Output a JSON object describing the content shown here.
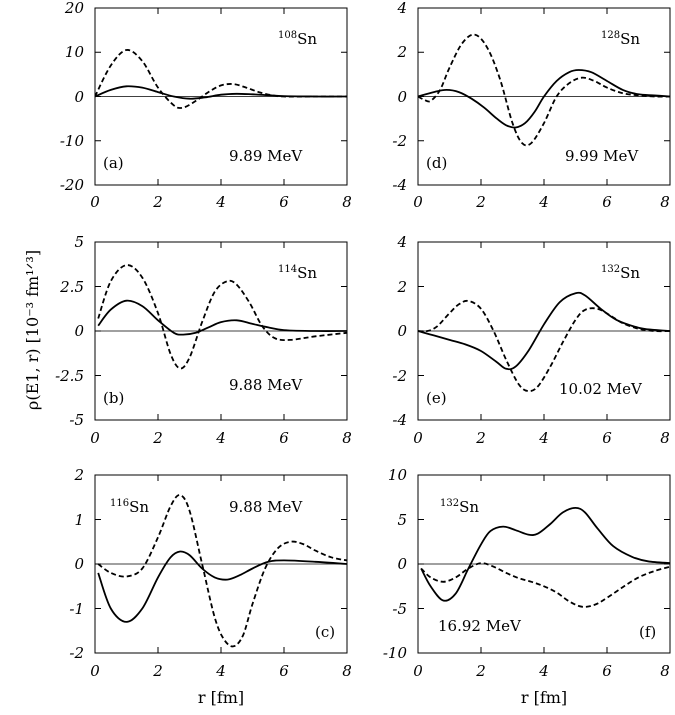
{
  "figure": {
    "ylabel": "ρ(E1, r) [10⁻³ fm¹ᐟ³]",
    "xlabel_left": "r [fm]",
    "xlabel_right": "r [fm]"
  },
  "chart_data": [
    {
      "type": "line",
      "panel": "(a)",
      "isotope_mass": "108",
      "isotope_symbol": "Sn",
      "energy": "9.89 MeV",
      "xlim": [
        0,
        8
      ],
      "ylim": [
        -20,
        20
      ],
      "x_ticks": [
        0,
        2,
        4,
        6,
        8
      ],
      "y_ticks": [
        -20,
        -10,
        0,
        10,
        20
      ],
      "x_tick_labels": [
        "0",
        "2",
        "4",
        "6",
        "8"
      ],
      "y_tick_labels": [
        "-20",
        "-10",
        "0",
        "10",
        "20"
      ],
      "series": [
        {
          "style": "solid",
          "x": [
            0,
            0.5,
            1,
            1.5,
            2,
            2.5,
            3,
            3.5,
            4,
            4.5,
            5,
            5.5,
            6,
            7,
            8
          ],
          "y": [
            0,
            1.5,
            2.3,
            2,
            1,
            0,
            -0.5,
            -0.2,
            0.4,
            0.6,
            0.5,
            0.3,
            0.1,
            0,
            0
          ]
        },
        {
          "style": "dashed",
          "x": [
            0,
            0.5,
            1,
            1.5,
            2,
            2.5,
            2.8,
            3.2,
            3.6,
            4,
            4.4,
            4.8,
            5.2,
            5.6,
            6,
            7,
            8
          ],
          "y": [
            0,
            7,
            10.5,
            8,
            2,
            -2,
            -2.5,
            -1,
            1,
            2.5,
            2.8,
            2,
            1,
            0.3,
            0,
            0,
            0
          ]
        }
      ]
    },
    {
      "type": "line",
      "panel": "(b)",
      "isotope_mass": "114",
      "isotope_symbol": "Sn",
      "energy": "9.88 MeV",
      "xlim": [
        0,
        8
      ],
      "ylim": [
        -5,
        5
      ],
      "x_ticks": [
        0,
        2,
        4,
        6,
        8
      ],
      "y_ticks": [
        -5,
        -2.5,
        0,
        2.5,
        5
      ],
      "x_tick_labels": [
        "0",
        "2",
        "4",
        "6",
        "8"
      ],
      "y_tick_labels": [
        "-5",
        "-2.5",
        "0",
        "2.5",
        "5"
      ],
      "series": [
        {
          "style": "solid",
          "x": [
            0.1,
            0.5,
            1,
            1.5,
            2,
            2.5,
            2.8,
            3.2,
            3.6,
            4,
            4.5,
            5,
            5.5,
            6,
            7,
            8
          ],
          "y": [
            0.3,
            1.2,
            1.7,
            1.4,
            0.6,
            -0.1,
            -0.2,
            -0.1,
            0.2,
            0.5,
            0.6,
            0.4,
            0.2,
            0.05,
            0,
            0
          ]
        },
        {
          "style": "dashed",
          "x": [
            0.1,
            0.5,
            1,
            1.5,
            2,
            2.4,
            2.7,
            3,
            3.4,
            3.8,
            4.2,
            4.5,
            4.9,
            5.3,
            5.7,
            6.2,
            7,
            8
          ],
          "y": [
            0.7,
            2.8,
            3.7,
            3,
            1,
            -1.3,
            -2.1,
            -1.5,
            0.5,
            2.2,
            2.8,
            2.6,
            1.6,
            0.3,
            -0.4,
            -0.5,
            -0.3,
            -0.1
          ]
        }
      ]
    },
    {
      "type": "line",
      "panel": "(c)",
      "isotope_mass": "116",
      "isotope_symbol": "Sn",
      "energy": "9.88 MeV",
      "xlim": [
        0,
        8
      ],
      "ylim": [
        -2,
        2
      ],
      "x_ticks": [
        0,
        2,
        4,
        6,
        8
      ],
      "y_ticks": [
        -2,
        -1,
        0,
        1,
        2
      ],
      "x_tick_labels": [
        "0",
        "2",
        "4",
        "6",
        "8"
      ],
      "y_tick_labels": [
        "-2",
        "-1",
        "0",
        "1",
        "2"
      ],
      "series": [
        {
          "style": "solid",
          "x": [
            0.1,
            0.5,
            1,
            1.5,
            2,
            2.4,
            2.7,
            3,
            3.4,
            3.8,
            4.2,
            4.6,
            5,
            5.5,
            6,
            7,
            8
          ],
          "y": [
            -0.2,
            -1.0,
            -1.3,
            -1.0,
            -0.3,
            0.15,
            0.28,
            0.2,
            -0.1,
            -0.3,
            -0.35,
            -0.25,
            -0.1,
            0.05,
            0.08,
            0.05,
            0
          ]
        },
        {
          "style": "dashed",
          "x": [
            0.1,
            0.5,
            1,
            1.5,
            2,
            2.4,
            2.7,
            3,
            3.4,
            3.8,
            4.1,
            4.4,
            4.7,
            5,
            5.4,
            5.8,
            6.2,
            6.6,
            7,
            7.5,
            8
          ],
          "y": [
            0,
            -0.2,
            -0.28,
            -0.1,
            0.6,
            1.3,
            1.55,
            1.2,
            0,
            -1.2,
            -1.7,
            -1.85,
            -1.6,
            -0.9,
            -0.1,
            0.35,
            0.5,
            0.45,
            0.3,
            0.15,
            0.08
          ]
        }
      ]
    },
    {
      "type": "line",
      "panel": "(d)",
      "isotope_mass": "128",
      "isotope_symbol": "Sn",
      "energy": "9.99 MeV",
      "xlim": [
        0,
        8
      ],
      "ylim": [
        -4,
        4
      ],
      "x_ticks": [
        0,
        2,
        4,
        6,
        8
      ],
      "y_ticks": [
        -4,
        -2,
        0,
        2,
        4
      ],
      "x_tick_labels": [
        "0",
        "2",
        "4",
        "6",
        "8"
      ],
      "y_tick_labels": [
        "-4",
        "-2",
        "0",
        "2",
        "4"
      ],
      "series": [
        {
          "style": "solid",
          "x": [
            0,
            0.5,
            0.9,
            1.3,
            1.7,
            2.1,
            2.5,
            2.8,
            3.1,
            3.4,
            3.7,
            4,
            4.4,
            4.8,
            5.1,
            5.5,
            6,
            6.5,
            7,
            7.5,
            8
          ],
          "y": [
            0,
            0.2,
            0.3,
            0.2,
            -0.1,
            -0.5,
            -1.0,
            -1.3,
            -1.4,
            -1.2,
            -0.7,
            0,
            0.7,
            1.1,
            1.2,
            1.1,
            0.7,
            0.3,
            0.1,
            0.05,
            0
          ]
        },
        {
          "style": "dashed",
          "x": [
            0,
            0.2,
            0.4,
            0.7,
            1,
            1.4,
            1.8,
            2.2,
            2.6,
            3,
            3.3,
            3.6,
            4,
            4.4,
            4.8,
            5.2,
            5.6,
            6,
            6.5,
            7,
            7.5,
            8
          ],
          "y": [
            0,
            -0.15,
            -0.2,
            0.3,
            1.3,
            2.4,
            2.8,
            2.2,
            0.8,
            -1.2,
            -2.1,
            -2.1,
            -1.2,
            0,
            0.6,
            0.85,
            0.7,
            0.4,
            0.15,
            0.05,
            0,
            0
          ]
        }
      ]
    },
    {
      "type": "line",
      "panel": "(e)",
      "isotope_mass": "132",
      "isotope_symbol": "Sn",
      "energy": "10.02 MeV",
      "xlim": [
        0,
        8
      ],
      "ylim": [
        -4,
        4
      ],
      "x_ticks": [
        0,
        2,
        4,
        6,
        8
      ],
      "y_ticks": [
        -4,
        -2,
        0,
        2,
        4
      ],
      "x_tick_labels": [
        "0",
        "2",
        "4",
        "6",
        "8"
      ],
      "y_tick_labels": [
        "-4",
        "-2",
        "0",
        "2",
        "4"
      ],
      "series": [
        {
          "style": "solid",
          "x": [
            0,
            0.5,
            1,
            1.5,
            2,
            2.5,
            2.8,
            3.1,
            3.5,
            4,
            4.5,
            5,
            5.3,
            5.8,
            6.3,
            7,
            7.5,
            8
          ],
          "y": [
            0,
            -0.2,
            -0.4,
            -0.6,
            -0.9,
            -1.4,
            -1.7,
            -1.6,
            -0.9,
            0.3,
            1.3,
            1.7,
            1.6,
            1.0,
            0.5,
            0.15,
            0.05,
            0
          ]
        },
        {
          "style": "dashed",
          "x": [
            0,
            0.3,
            0.6,
            1,
            1.3,
            1.6,
            2,
            2.4,
            2.8,
            3.2,
            3.5,
            3.8,
            4.2,
            4.6,
            5,
            5.3,
            5.7,
            6.1,
            6.5,
            7,
            7.5,
            8
          ],
          "y": [
            0,
            0,
            0.2,
            0.8,
            1.2,
            1.35,
            1.0,
            0,
            -1.3,
            -2.4,
            -2.7,
            -2.5,
            -1.6,
            -0.5,
            0.5,
            0.95,
            1.0,
            0.7,
            0.35,
            0.1,
            0,
            0
          ]
        }
      ]
    },
    {
      "type": "line",
      "panel": "(f)",
      "isotope_mass": "132",
      "isotope_symbol": "Sn",
      "energy": "16.92 MeV",
      "xlim": [
        0,
        8
      ],
      "ylim": [
        -10,
        10
      ],
      "x_ticks": [
        0,
        2,
        4,
        6,
        8
      ],
      "y_ticks": [
        -10,
        -5,
        0,
        5,
        10
      ],
      "x_tick_labels": [
        "0",
        "2",
        "4",
        "6",
        "8"
      ],
      "y_tick_labels": [
        "-10",
        "-5",
        "0",
        "5",
        "10"
      ],
      "series": [
        {
          "style": "solid",
          "x": [
            0.1,
            0.4,
            0.8,
            1.2,
            1.6,
            2,
            2.3,
            2.7,
            3.1,
            3.5,
            3.8,
            4.2,
            4.6,
            5,
            5.3,
            5.7,
            6.2,
            6.8,
            7.3,
            8
          ],
          "y": [
            -0.5,
            -2.5,
            -4.1,
            -3.3,
            -0.5,
            2.2,
            3.7,
            4.2,
            3.8,
            3.3,
            3.4,
            4.5,
            5.8,
            6.3,
            5.8,
            4.0,
            2.0,
            0.8,
            0.3,
            0.1
          ]
        },
        {
          "style": "dashed",
          "x": [
            0.1,
            0.4,
            0.8,
            1.2,
            1.6,
            2,
            2.4,
            2.8,
            3.2,
            3.6,
            4,
            4.4,
            4.8,
            5.2,
            5.6,
            6,
            6.5,
            7,
            7.5,
            8
          ],
          "y": [
            -0.5,
            -1.5,
            -2.0,
            -1.5,
            -0.5,
            0.1,
            -0.3,
            -1.0,
            -1.6,
            -2.0,
            -2.5,
            -3.2,
            -4.2,
            -4.8,
            -4.6,
            -3.8,
            -2.6,
            -1.5,
            -0.8,
            -0.3
          ]
        }
      ]
    }
  ]
}
